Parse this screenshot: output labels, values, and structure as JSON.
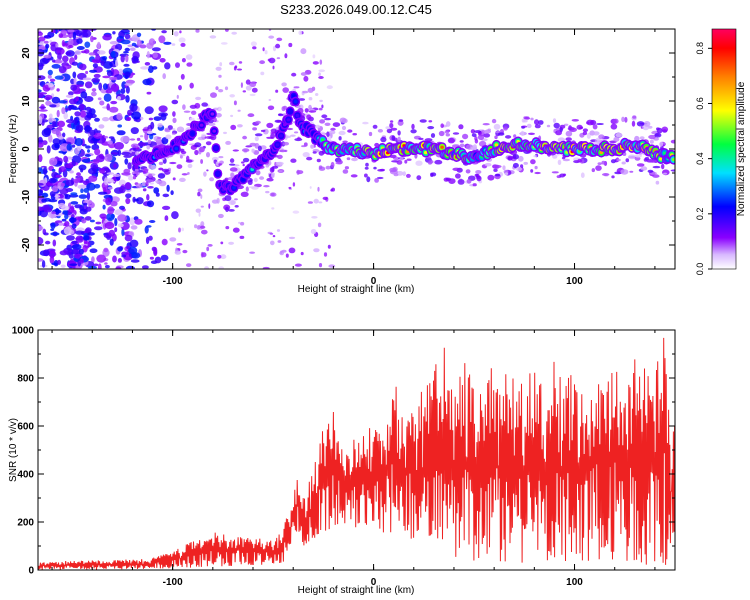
{
  "title": "S233.2026.049.00.12.C45",
  "chart_data": [
    {
      "type": "heatmap",
      "title": "S233.2026.049.00.12.C45",
      "xlabel": "Height of straight line (km)",
      "ylabel": "Frequency (Hz)",
      "xlim": [
        -167,
        150
      ],
      "ylim": [
        -25,
        25
      ],
      "x_ticks": [
        -100,
        0,
        100
      ],
      "x_tick_labels": [
        "-100",
        "0",
        "100"
      ],
      "y_ticks": [
        -20,
        -10,
        0,
        10,
        20
      ],
      "y_tick_labels": [
        "-20",
        "-10",
        "0",
        "10",
        "20"
      ],
      "colorbar": {
        "label": "Normalized spectral amplitude",
        "range": [
          0,
          0.87
        ],
        "ticks": [
          0.0,
          0.2,
          0.4,
          0.6,
          0.8
        ],
        "tick_labels": [
          "0.0",
          "0.2",
          "0.4",
          "0.6",
          "0.8"
        ],
        "colors": [
          "#ffffff",
          "#8a00ff",
          "#0000ff",
          "#00e0ff",
          "#00ff40",
          "#ffff00",
          "#ff8000",
          "#ff0000",
          "#ff0060"
        ]
      },
      "ridge": {
        "x": [
          -115,
          -108,
          -100,
          -92,
          -85,
          -80,
          -77,
          -70,
          -65,
          -60,
          -55,
          -50,
          -46,
          -42,
          -40,
          -37,
          -33,
          -30,
          -27,
          -24,
          -20,
          -10,
          0,
          10,
          20,
          30,
          40,
          50,
          60,
          70,
          80,
          90,
          100,
          110,
          120,
          130,
          140,
          148
        ],
        "y": [
          -2,
          -1,
          0,
          3,
          6,
          8,
          -8,
          -8,
          -6,
          -4,
          -2,
          0,
          3,
          7,
          12,
          5,
          4,
          3,
          2,
          1,
          0,
          0,
          -1,
          0,
          0,
          0,
          -1,
          -2,
          0,
          1,
          1,
          0,
          0,
          0,
          0,
          1,
          -1,
          -2
        ],
        "amplitude": [
          0.25,
          0.3,
          0.3,
          0.25,
          0.2,
          0.15,
          0.2,
          0.25,
          0.3,
          0.35,
          0.3,
          0.25,
          0.2,
          0.2,
          0.3,
          0.25,
          0.3,
          0.35,
          0.45,
          0.5,
          0.6,
          0.7,
          0.8,
          0.75,
          0.7,
          0.8,
          0.7,
          0.6,
          0.75,
          0.8,
          0.85,
          0.8,
          0.8,
          0.85,
          0.8,
          0.85,
          0.75,
          0.6
        ]
      }
    },
    {
      "type": "line",
      "xlabel": "Height of straight line (km)",
      "ylabel": "SNR (10 * v/v)",
      "xlim": [
        -167,
        150
      ],
      "ylim": [
        0,
        1000
      ],
      "x_ticks": [
        -100,
        0,
        100
      ],
      "x_tick_labels": [
        "-100",
        "0",
        "100"
      ],
      "y_ticks": [
        0,
        200,
        400,
        600,
        800,
        1000
      ],
      "y_tick_labels": [
        "0",
        "200",
        "400",
        "600",
        "800",
        "1000"
      ],
      "series": [
        {
          "name": "SNR",
          "color": "#ee2222",
          "x": [
            -167,
            -150,
            -130,
            -110,
            -100,
            -90,
            -80,
            -70,
            -60,
            -50,
            -45,
            -40,
            -38,
            -35,
            -30,
            -25,
            -20,
            -15,
            -10,
            -5,
            0,
            5,
            10,
            15,
            20,
            25,
            30,
            35,
            40,
            45,
            50,
            55,
            60,
            65,
            70,
            75,
            80,
            85,
            90,
            95,
            100,
            105,
            110,
            115,
            120,
            125,
            130,
            135,
            140,
            145,
            148,
            150
          ],
          "envelope_high": [
            30,
            40,
            40,
            50,
            80,
            120,
            160,
            150,
            140,
            120,
            180,
            320,
            400,
            300,
            420,
            600,
            700,
            500,
            550,
            580,
            600,
            550,
            820,
            650,
            700,
            780,
            850,
            940,
            700,
            900,
            760,
            720,
            920,
            800,
            900,
            760,
            880,
            720,
            900,
            780,
            880,
            700,
            900,
            760,
            880,
            720,
            900,
            850,
            820,
            1000,
            600,
            800
          ],
          "envelope_low": [
            2,
            2,
            3,
            5,
            8,
            10,
            15,
            15,
            20,
            25,
            30,
            100,
            150,
            100,
            130,
            150,
            180,
            200,
            160,
            180,
            200,
            150,
            160,
            150,
            120,
            100,
            80,
            60,
            50,
            40,
            30,
            30,
            40,
            30,
            20,
            30,
            30,
            20,
            30,
            20,
            30,
            40,
            30,
            50,
            40,
            40,
            30,
            20,
            30,
            10,
            40,
            20
          ]
        }
      ]
    }
  ]
}
